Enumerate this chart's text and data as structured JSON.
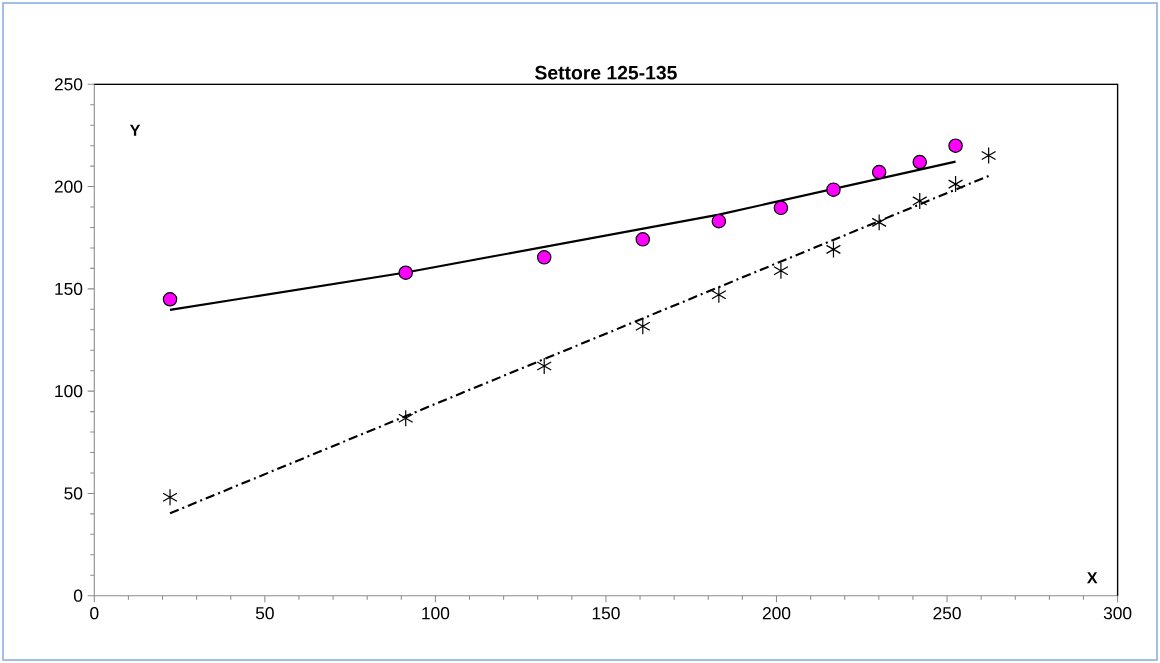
{
  "chart_data": {
    "type": "scatter",
    "title": "Settore  125-135",
    "xlabel": "X",
    "ylabel": "Y",
    "xlim": [
      0,
      300
    ],
    "ylim": [
      0,
      250
    ],
    "xticks": [
      0,
      50,
      100,
      150,
      200,
      250,
      300
    ],
    "yticks": [
      0,
      50,
      100,
      150,
      200,
      250
    ],
    "grid": false,
    "series": [
      {
        "marker": "circle",
        "color": "#ff00ff",
        "x": [
          22.2,
          91.3,
          131.9,
          160.8,
          183.1,
          201.3,
          216.7,
          230.1,
          242,
          252.5
        ],
        "values": [
          144.9,
          157.9,
          165.4,
          174.2,
          183.1,
          189.6,
          198.5,
          207.1,
          212,
          220
        ]
      },
      {
        "marker": "cross",
        "color": "#000000",
        "x": [
          22.2,
          91.3,
          131.9,
          160.8,
          183.1,
          201.3,
          216.7,
          230.1,
          242,
          252.5,
          262.2
        ],
        "values": [
          48.1,
          86.7,
          112.3,
          131.7,
          147.1,
          158.9,
          169.3,
          182.5,
          193,
          201.2,
          215.2
        ]
      },
      {
        "type": "line",
        "marker": "none",
        "line_style": "solid",
        "color": "#000000",
        "x": [
          22.2,
          91.3,
          183.1,
          252.5
        ],
        "values": [
          139.7,
          158,
          186.3,
          212.2
        ]
      },
      {
        "type": "line",
        "marker": "none",
        "line_style": "dashdot",
        "color": "#000000",
        "x": [
          22.2,
          262.2
        ],
        "values": [
          40.3,
          205.2
        ]
      }
    ]
  }
}
